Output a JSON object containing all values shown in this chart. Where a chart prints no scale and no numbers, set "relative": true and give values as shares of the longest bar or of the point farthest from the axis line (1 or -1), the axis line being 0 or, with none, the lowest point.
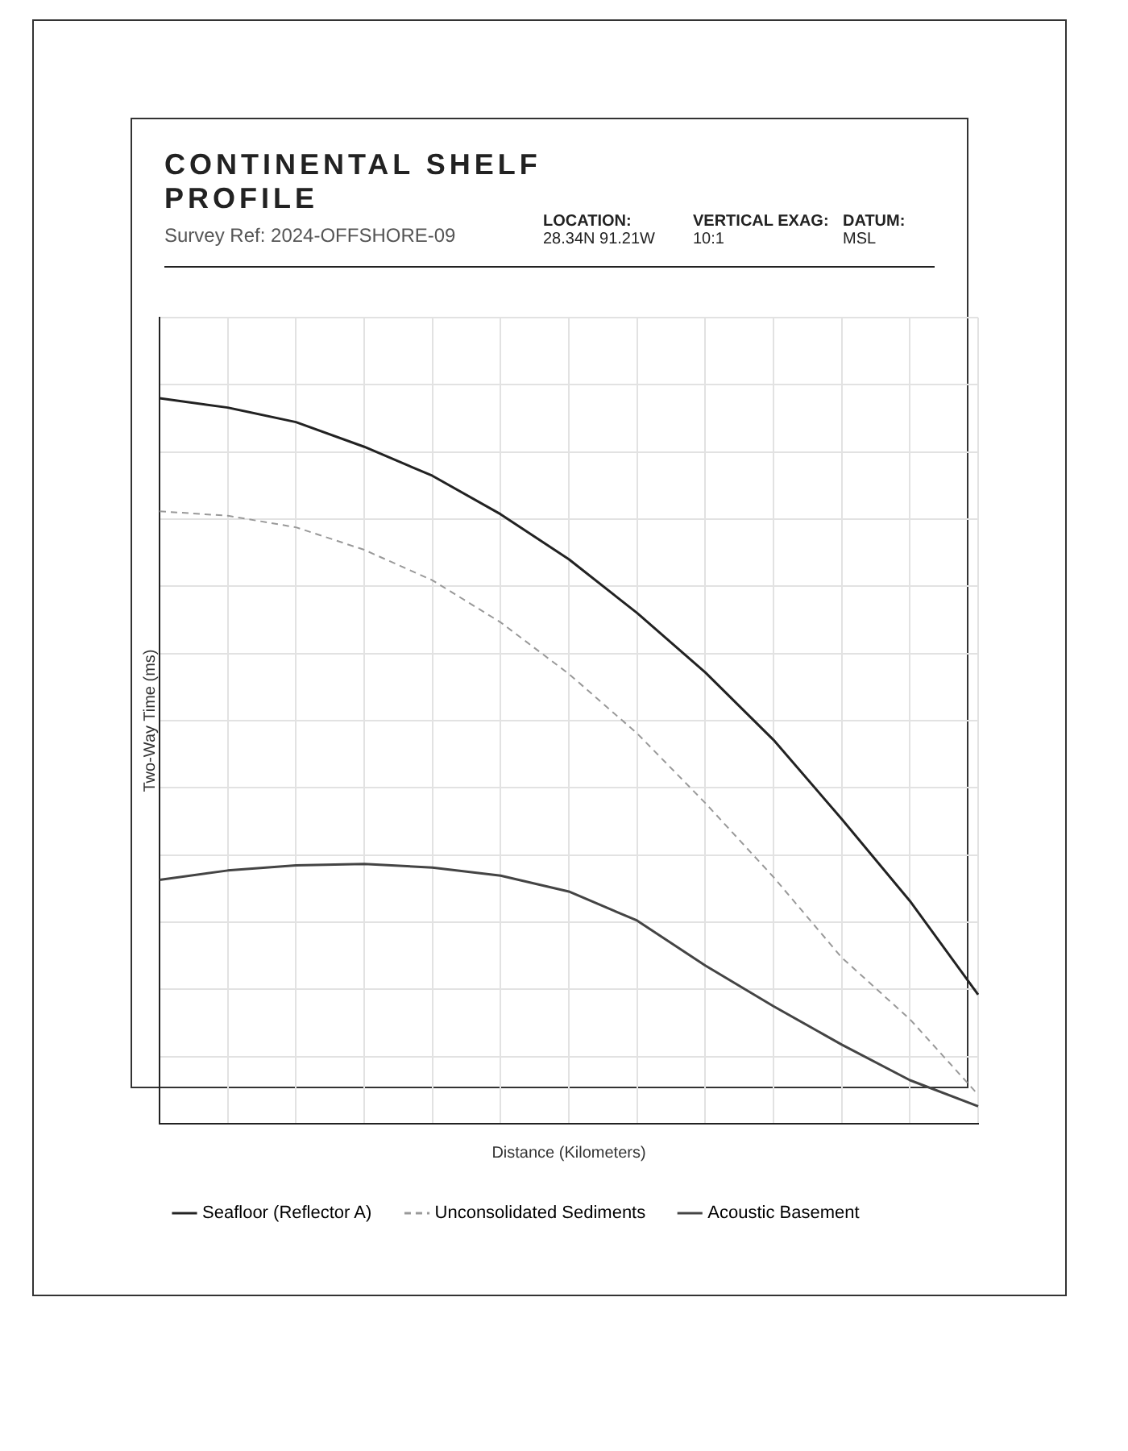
{
  "chart_data": {
    "type": "line",
    "title": "CONTINENTAL SHELF PROFILE",
    "subtitle": "Survey Ref: 2024-OFFSHORE-09",
    "annotations": [
      "LOCATION: 28.34N 91.21W",
      "VERTICAL EXAG: 10:1",
      "DATUM: MSL"
    ],
    "xlabel": "Distance (Kilometers)",
    "ylabel": "Two-Way Time (ms)",
    "relative": true,
    "categories": [
      null,
      null,
      null,
      null,
      null,
      null,
      null,
      null,
      null,
      null,
      null,
      null,
      null
    ],
    "series": [
      {
        "name": "Seafloor (Reflector A)",
        "color": "#222222",
        "line_style": "solid",
        "values": [
          1,
          0.987,
          0.967,
          0.933,
          0.893,
          0.84,
          0.778,
          0.704,
          0.622,
          0.529,
          0.42,
          0.307,
          0.178
        ]
      },
      {
        "name": "Unconsolidated Sediments",
        "color": "#999999",
        "line_style": "dashed",
        "values": [
          0.844,
          0.838,
          0.822,
          0.791,
          0.749,
          0.691,
          0.62,
          0.538,
          0.442,
          0.34,
          0.229,
          0.144,
          0.04
        ]
      },
      {
        "name": "Acoustic Basement",
        "color": "#444444",
        "line_style": "solid",
        "values": [
          0.336,
          0.349,
          0.356,
          0.358,
          0.353,
          0.342,
          0.32,
          0.28,
          0.218,
          0.162,
          0.109,
          0.06,
          0.024
        ]
      }
    ],
    "grid": true,
    "legend": "bottom",
    "marker": "none"
  }
}
